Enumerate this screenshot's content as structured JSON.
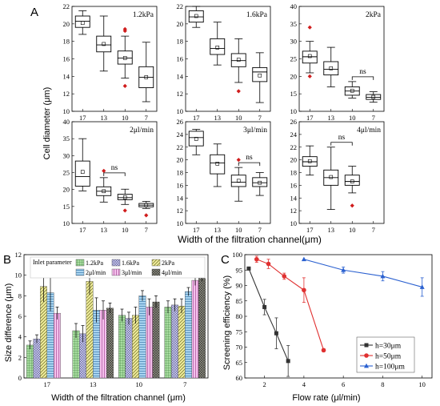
{
  "panel_letters": {
    "a": "A",
    "b": "B",
    "c": "C"
  },
  "chart_data": [
    {
      "id": "A",
      "type": "box",
      "layout": "2x3",
      "ylabel": "Cell diameter (μm)",
      "xlabel": "Width of the filtration channel(μm)",
      "categories": [
        "17",
        "13",
        "10",
        "7"
      ],
      "subplots": [
        {
          "label": "1.2kPa",
          "ylim": [
            10,
            22
          ],
          "yticks": [
            10,
            12,
            14,
            16,
            18,
            20,
            22
          ],
          "boxes": [
            {
              "whislo": 18.8,
              "q1": 19.6,
              "med": 20.3,
              "q3": 20.9,
              "whishi": 21.5,
              "mean": 20.1,
              "outliers": []
            },
            {
              "whislo": 14.6,
              "q1": 16.8,
              "med": 17.6,
              "q3": 18.6,
              "whishi": 20.9,
              "mean": 17.7,
              "outliers": []
            },
            {
              "whislo": 13.8,
              "q1": 15.4,
              "med": 16.1,
              "q3": 16.9,
              "whishi": 18.6,
              "mean": 16.1,
              "outliers": [
                19.4,
                19.2,
                12.9
              ]
            },
            {
              "whislo": 11.1,
              "q1": 12.7,
              "med": 13.9,
              "q3": 15.1,
              "whishi": 17.9,
              "mean": 13.9,
              "outliers": []
            }
          ]
        },
        {
          "label": "1.6kPa",
          "ylim": [
            10,
            22
          ],
          "yticks": [
            10,
            12,
            14,
            16,
            18,
            20,
            22
          ],
          "boxes": [
            {
              "whislo": 19.6,
              "q1": 20.2,
              "med": 20.8,
              "q3": 21.5,
              "whishi": 22.0,
              "mean": 20.9,
              "outliers": []
            },
            {
              "whislo": 15.3,
              "q1": 16.5,
              "med": 17.2,
              "q3": 18.3,
              "whishi": 20.2,
              "mean": 17.3,
              "outliers": []
            },
            {
              "whislo": 13.3,
              "q1": 15.1,
              "med": 15.8,
              "q3": 16.6,
              "whishi": 18.3,
              "mean": 15.9,
              "outliers": [
                12.3
              ]
            },
            {
              "whislo": 11.0,
              "q1": 13.4,
              "med": 14.5,
              "q3": 15.0,
              "whishi": 16.7,
              "mean": 14.1,
              "outliers": []
            }
          ]
        },
        {
          "label": "2kPa",
          "ylim": [
            10,
            40
          ],
          "yticks": [
            10,
            15,
            20,
            25,
            30,
            35,
            40
          ],
          "boxes": [
            {
              "whislo": 21.0,
              "q1": 23.8,
              "med": 25.6,
              "q3": 27.2,
              "whishi": 30.0,
              "mean": 25.8,
              "outliers": [
                34.0,
                20.0
              ]
            },
            {
              "whislo": 17.0,
              "q1": 20.4,
              "med": 22.0,
              "q3": 24.2,
              "whishi": 28.3,
              "mean": 22.3,
              "outliers": []
            },
            {
              "whislo": 13.8,
              "q1": 14.6,
              "med": 15.8,
              "q3": 17.0,
              "whishi": 18.5,
              "mean": 15.9,
              "outliers": []
            },
            {
              "whislo": 12.6,
              "q1": 13.4,
              "med": 14.0,
              "q3": 14.8,
              "whishi": 15.6,
              "mean": 14.1,
              "outliers": []
            }
          ],
          "annotation": {
            "text": "ns",
            "from": 2,
            "to": 3
          }
        },
        {
          "label": "2μl/min",
          "ylim": [
            10,
            40
          ],
          "yticks": [
            10,
            15,
            20,
            25,
            30,
            35,
            40
          ],
          "boxes": [
            {
              "whislo": 19.6,
              "q1": 21.0,
              "med": 23.8,
              "q3": 28.4,
              "whishi": 35.0,
              "mean": 25.2,
              "outliers": []
            },
            {
              "whislo": 16.3,
              "q1": 18.2,
              "med": 19.5,
              "q3": 20.8,
              "whishi": 23.5,
              "mean": 19.5,
              "outliers": [
                25.5
              ]
            },
            {
              "whislo": 15.6,
              "q1": 17.0,
              "med": 17.6,
              "q3": 18.6,
              "whishi": 20.1,
              "mean": 17.7,
              "outliers": [
                13.8
              ]
            },
            {
              "whislo": 14.4,
              "q1": 14.9,
              "med": 15.4,
              "q3": 15.9,
              "whishi": 16.5,
              "mean": 15.4,
              "outliers": [
                12.4
              ]
            }
          ],
          "annotation": {
            "text": "ns",
            "from": 1,
            "to": 2
          }
        },
        {
          "label": "3μl/min",
          "ylim": [
            10,
            26
          ],
          "yticks": [
            10,
            12,
            14,
            16,
            18,
            20,
            22,
            24,
            26
          ],
          "boxes": [
            {
              "whislo": 20.8,
              "q1": 22.2,
              "med": 23.5,
              "q3": 24.5,
              "whishi": 24.8,
              "mean": 23.3,
              "outliers": []
            },
            {
              "whislo": 15.8,
              "q1": 17.8,
              "med": 19.5,
              "q3": 20.8,
              "whishi": 22.5,
              "mean": 19.4,
              "outliers": []
            },
            {
              "whislo": 13.5,
              "q1": 15.8,
              "med": 16.5,
              "q3": 17.6,
              "whishi": 18.8,
              "mean": 16.7,
              "outliers": [
                20.0
              ]
            },
            {
              "whislo": 14.4,
              "q1": 15.8,
              "med": 16.4,
              "q3": 17.2,
              "whishi": 18.0,
              "mean": 16.4,
              "outliers": []
            }
          ],
          "annotation": {
            "text": "ns",
            "from": 2,
            "to": 3
          }
        },
        {
          "label": "4μl/min",
          "ylim": [
            10,
            26
          ],
          "yticks": [
            10,
            12,
            14,
            16,
            18,
            20,
            22,
            24,
            26
          ],
          "boxes": [
            {
              "whislo": 17.6,
              "q1": 19.0,
              "med": 19.7,
              "q3": 20.5,
              "whishi": 22.2,
              "mean": 19.8,
              "outliers": []
            },
            {
              "whislo": 12.2,
              "q1": 16.0,
              "med": 17.2,
              "q3": 18.4,
              "whishi": 22.0,
              "mean": 17.3,
              "outliers": []
            },
            {
              "whislo": 14.8,
              "q1": 16.0,
              "med": 16.6,
              "q3": 17.6,
              "whishi": 19.0,
              "mean": 16.6,
              "outliers": [
                12.8
              ]
            }
          ],
          "annotation": {
            "text": "ns",
            "from": 1,
            "to": 2
          }
        }
      ],
      "colors": {
        "box": "#000000",
        "outlier": "#d01c1c"
      }
    },
    {
      "id": "B",
      "type": "bar",
      "ylabel": "Size difference (μm)",
      "xlabel": "Width of the filtration channel (μm)",
      "ylim": [
        0,
        12
      ],
      "yticks": [
        0,
        2,
        4,
        6,
        8,
        10,
        12
      ],
      "categories": [
        "17",
        "13",
        "10",
        "7"
      ],
      "legend_title": "Inlet parameter",
      "series": [
        {
          "name": "1.2kPa",
          "values": [
            3.2,
            4.6,
            6.1,
            6.9
          ],
          "errors": [
            0.4,
            0.7,
            0.6,
            0.6
          ],
          "color": "#a8dca0",
          "hatch": "grid"
        },
        {
          "name": "1.6kPa",
          "values": [
            3.8,
            4.3,
            5.8,
            7.1
          ],
          "errors": [
            0.4,
            0.8,
            0.6,
            0.6
          ],
          "color": "#c8c8e8",
          "hatch": "cross"
        },
        {
          "name": "2kPa",
          "values": [
            8.9,
            9.4,
            6.1,
            7.0
          ],
          "errors": [
            1.5,
            1.3,
            0.8,
            0.7
          ],
          "color": "#f0ec9c",
          "hatch": "diag"
        },
        {
          "name": "2μl/min",
          "values": [
            8.3,
            6.6,
            8.0,
            8.4
          ],
          "errors": [
            1.8,
            1.2,
            0.5,
            0.4
          ],
          "color": "#a8d4f0",
          "hatch": "horiz"
        },
        {
          "name": "3μl/min",
          "values": [
            6.3,
            6.6,
            6.9,
            9.5
          ],
          "errors": [
            0.6,
            0.9,
            0.8,
            0.5
          ],
          "color": "#f4c0ec",
          "hatch": "vert"
        },
        {
          "name": "4μl/min",
          "values": [
            null,
            6.8,
            7.4,
            9.7
          ],
          "errors": [
            null,
            0.5,
            0.6,
            0.3
          ],
          "color": "#9a9a8a",
          "hatch": "crossdiag"
        }
      ]
    },
    {
      "id": "C",
      "type": "line",
      "ylabel": "Screening efficiency (%)",
      "xlabel": "Flow rate (μl/min)",
      "xlim": [
        1,
        10.5
      ],
      "ylim": [
        60,
        100
      ],
      "xticks": [
        2,
        4,
        6,
        8,
        10
      ],
      "yticks": [
        60,
        65,
        70,
        75,
        80,
        85,
        90,
        95,
        100
      ],
      "series": [
        {
          "name": "h=30μm",
          "color": "#333333",
          "marker": "square",
          "x": [
            1.2,
            2.0,
            2.6,
            3.2
          ],
          "y": [
            95.5,
            83.0,
            74.5,
            65.5
          ],
          "err": [
            0,
            2.5,
            5.0,
            5.0
          ]
        },
        {
          "name": "h=50μm",
          "color": "#e03030",
          "marker": "circle",
          "x": [
            1.6,
            2.2,
            3.0,
            4.0,
            5.0
          ],
          "y": [
            98.5,
            97.0,
            93.0,
            88.5,
            69.0
          ],
          "err": [
            1.0,
            1.5,
            1.0,
            4.0,
            0.5
          ]
        },
        {
          "name": "h=100μm",
          "color": "#2a60d0",
          "marker": "triangle",
          "x": [
            4.0,
            6.0,
            8.0,
            10.0
          ],
          "y": [
            98.5,
            95.0,
            93.0,
            89.5
          ],
          "err": [
            0,
            1.0,
            1.5,
            3.0
          ]
        }
      ]
    }
  ]
}
